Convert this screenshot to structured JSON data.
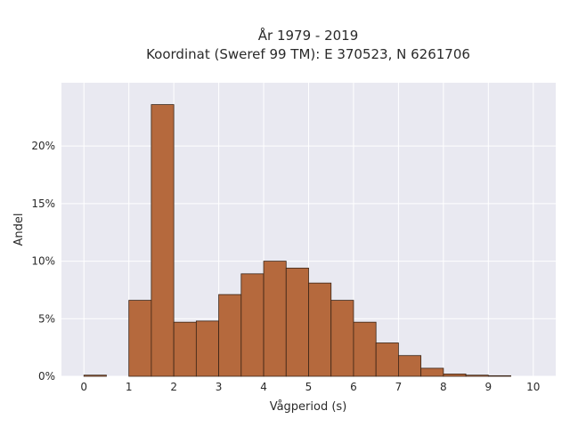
{
  "chart_data": {
    "type": "bar",
    "title_lines": [
      "År 1979 - 2019",
      "Koordinat (Sweref 99 TM): E 370523, N 6261706"
    ],
    "xlabel": "Vågperiod (s)",
    "ylabel": "Andel",
    "xlim": [
      -0.5,
      10.5
    ],
    "ylim": [
      0,
      25.5
    ],
    "bin_width": 0.5,
    "bin_starts": [
      0,
      0.5,
      1.0,
      1.5,
      2.0,
      2.5,
      3.0,
      3.5,
      4.0,
      4.5,
      5.0,
      5.5,
      6.0,
      6.5,
      7.0,
      7.5,
      8.0,
      8.5,
      9.0,
      9.5
    ],
    "values": [
      0.1,
      0.0,
      6.6,
      23.6,
      4.7,
      4.8,
      7.1,
      8.9,
      10.0,
      9.4,
      8.1,
      6.6,
      4.7,
      2.9,
      1.8,
      0.7,
      0.2,
      0.1,
      0.05,
      0.0
    ],
    "x_ticks": [
      "0",
      "1",
      "2",
      "3",
      "4",
      "5",
      "6",
      "7",
      "8",
      "9",
      "10"
    ],
    "x_tick_values": [
      0,
      1,
      2,
      3,
      4,
      5,
      6,
      7,
      8,
      9,
      10
    ],
    "y_ticks": [
      "0%",
      "5%",
      "10%",
      "15%",
      "20%"
    ],
    "y_tick_values": [
      0,
      5,
      10,
      15,
      20
    ],
    "grid": true,
    "colors": {
      "bar_fill": "#b5693d",
      "bar_edge": "#3a2416",
      "plot_bg": "#e9e9f1",
      "grid": "#ffffff"
    }
  }
}
